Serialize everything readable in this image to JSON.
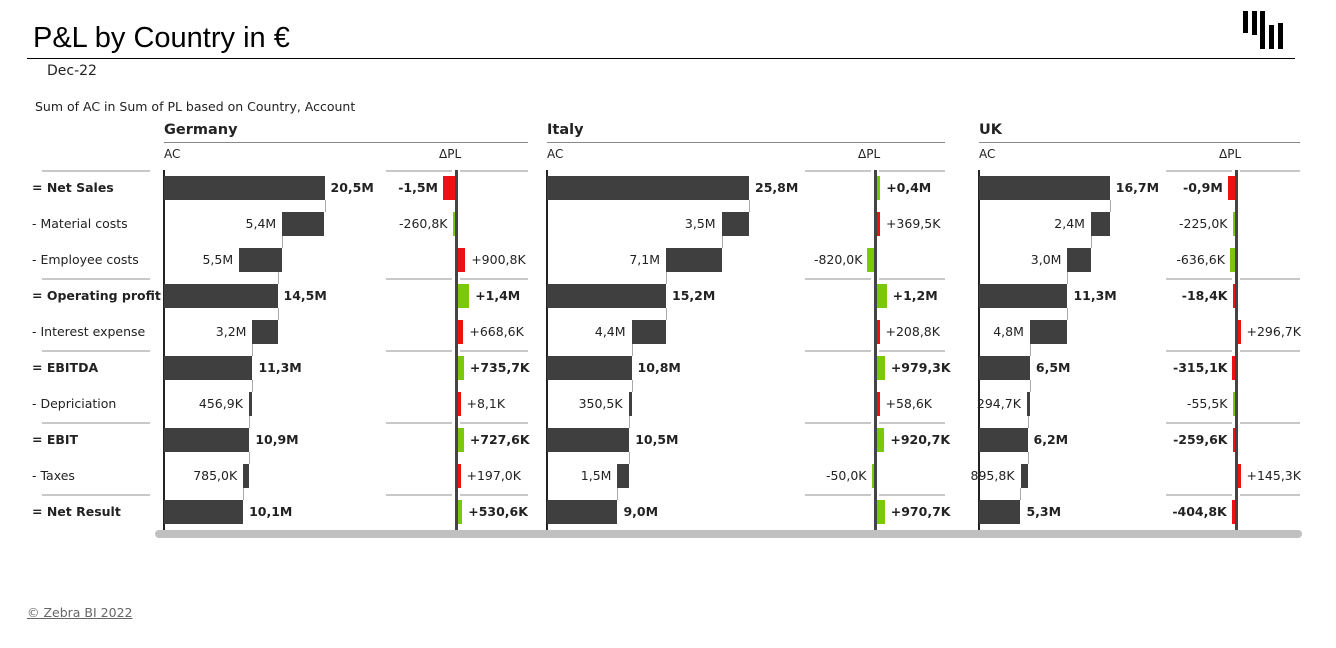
{
  "header": {
    "title": "P&L by Country in €",
    "period": "Dec-22",
    "subtitle": "Sum of AC in Sum of PL based on Country, Account",
    "logo_icon": "zebra-bi-logo-icon"
  },
  "colors": {
    "ac_bar": "#3f3f3f",
    "positive_delta": "#7ac70c",
    "negative_delta": "#ee1111",
    "gridline": "#c8c8c8",
    "scrollbar": "#c0c0c0"
  },
  "rows": [
    {
      "label": "= Net Sales",
      "bold": true
    },
    {
      "label": "-  Material costs",
      "bold": false
    },
    {
      "label": "-  Employee costs",
      "bold": false
    },
    {
      "label": "= Operating profit",
      "bold": true
    },
    {
      "label": "-  Interest expense",
      "bold": false
    },
    {
      "label": "= EBITDA",
      "bold": true
    },
    {
      "label": "-  Depriciation",
      "bold": false
    },
    {
      "label": "= EBIT",
      "bold": true
    },
    {
      "label": "-  Taxes",
      "bold": false
    },
    {
      "label": "= Net Result",
      "bold": true
    }
  ],
  "column_headers": {
    "ac": "AC",
    "delta": "ΔPL"
  },
  "countries": [
    {
      "name": "Germany",
      "ac_labels": [
        "20,5M",
        "5,4M",
        "5,5M",
        "14,5M",
        "3,2M",
        "11,3M",
        "456,9K",
        "10,9M",
        "785,0K",
        "10,1M"
      ],
      "delta_labels": [
        "-1,5M",
        "-260,8K",
        "+900,8K",
        "+1,4M",
        "+668,6K",
        "+735,7K",
        "+8,1K",
        "+727,6K",
        "+197,0K",
        "+530,6K"
      ]
    },
    {
      "name": "Italy",
      "ac_labels": [
        "25,8M",
        "3,5M",
        "7,1M",
        "15,2M",
        "4,4M",
        "10,8M",
        "350,5K",
        "10,5M",
        "1,5M",
        "9,0M"
      ],
      "delta_labels": [
        "+0,4M",
        "+369,5K",
        "-820,0K",
        "+1,2M",
        "+208,8K",
        "+979,3K",
        "+58,6K",
        "+920,7K",
        "-50,0K",
        "+970,7K"
      ]
    },
    {
      "name": "UK",
      "ac_labels": [
        "16,7M",
        "2,4M",
        "3,0M",
        "11,3M",
        "4,8M",
        "6,5M",
        "294,7K",
        "6,2M",
        "895,8K",
        "5,3M"
      ],
      "delta_labels": [
        "-0,9M",
        "-225,0K",
        "-636,6K",
        "-18,4K",
        "+296,7K",
        "-315,1K",
        "-55,5K",
        "-259,6K",
        "+145,3K",
        "-404,8K"
      ]
    }
  ],
  "chart_data": {
    "type": "bar",
    "subtype": "waterfall-small-multiples",
    "title": "P&L by Country in €",
    "subtitle": "Sum of AC in Sum of PL based on Country, Account",
    "period": "Dec-22",
    "categories": [
      "Net Sales",
      "Material costs",
      "Employee costs",
      "Operating profit",
      "Interest expense",
      "EBITDA",
      "Depriciation",
      "EBIT",
      "Taxes",
      "Net Result"
    ],
    "category_types": [
      "total",
      "cost",
      "cost",
      "total",
      "cost",
      "total",
      "cost",
      "total",
      "cost",
      "total"
    ],
    "unit": "EUR",
    "series": [
      {
        "name": "Germany AC",
        "values": [
          20500000,
          5400000,
          5500000,
          14500000,
          3200000,
          11300000,
          456900,
          10900000,
          785000,
          10100000
        ]
      },
      {
        "name": "Germany ΔPL",
        "values": [
          -1500000,
          -260800,
          900800,
          1400000,
          668600,
          735700,
          8100,
          727600,
          197000,
          530600
        ]
      },
      {
        "name": "Italy AC",
        "values": [
          25800000,
          3500000,
          7100000,
          15200000,
          4400000,
          10800000,
          350500,
          10500000,
          1500000,
          9000000
        ]
      },
      {
        "name": "Italy ΔPL",
        "values": [
          400000,
          369500,
          -820000,
          1200000,
          208800,
          979300,
          58600,
          920700,
          -50000,
          970700
        ]
      },
      {
        "name": "UK AC",
        "values": [
          16700000,
          2400000,
          3000000,
          11300000,
          4800000,
          6500000,
          294700,
          6200000,
          895800,
          5300000
        ]
      },
      {
        "name": "UK ΔPL",
        "values": [
          -900000,
          -225000,
          -636600,
          -18400,
          296700,
          -315100,
          -55500,
          -259600,
          145300,
          -404800
        ]
      }
    ],
    "delta_color_rule": "costs: negative delta = green (good), positive = red; totals: positive = green, negative = red",
    "grid": false,
    "legend": "none"
  },
  "footer": {
    "copyright": "© Zebra BI 2022"
  }
}
